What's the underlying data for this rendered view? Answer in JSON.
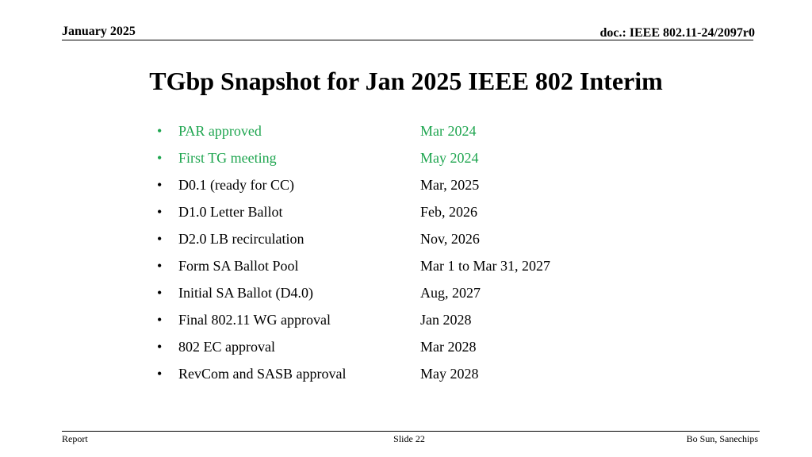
{
  "header": {
    "date": "January 2025",
    "doc_id": "doc.: IEEE 802.11-24/2097r0"
  },
  "title": "TGbp Snapshot for Jan 2025 IEEE 802 Interim",
  "bullet_glyph": "•",
  "milestones": [
    {
      "label": "PAR approved",
      "date": "Mar 2024",
      "completed": true
    },
    {
      "label": "First TG meeting",
      "date": "May 2024",
      "completed": true
    },
    {
      "label": "D0.1 (ready for CC)",
      "date": "Mar, 2025",
      "completed": false
    },
    {
      "label": "D1.0 Letter Ballot",
      "date": "Feb, 2026",
      "completed": false
    },
    {
      "label": "D2.0 LB recirculation",
      "date": "Nov, 2026",
      "completed": false
    },
    {
      "label": "Form SA Ballot Pool",
      "date": "Mar 1 to Mar 31, 2027",
      "completed": false
    },
    {
      "label": "Initial SA Ballot (D4.0)",
      "date": "Aug, 2027",
      "completed": false
    },
    {
      "label": "Final 802.11 WG approval",
      "date": "Jan 2028",
      "completed": false
    },
    {
      "label": "802 EC approval",
      "date": "Mar 2028",
      "completed": false
    },
    {
      "label": "RevCom and SASB approval",
      "date": "May 2028",
      "completed": false
    }
  ],
  "colors": {
    "completed": "#1ea54f",
    "default": "#000000"
  },
  "footer": {
    "left": "Report",
    "center": "Slide 22",
    "right": "Bo Sun, Sanechips"
  }
}
